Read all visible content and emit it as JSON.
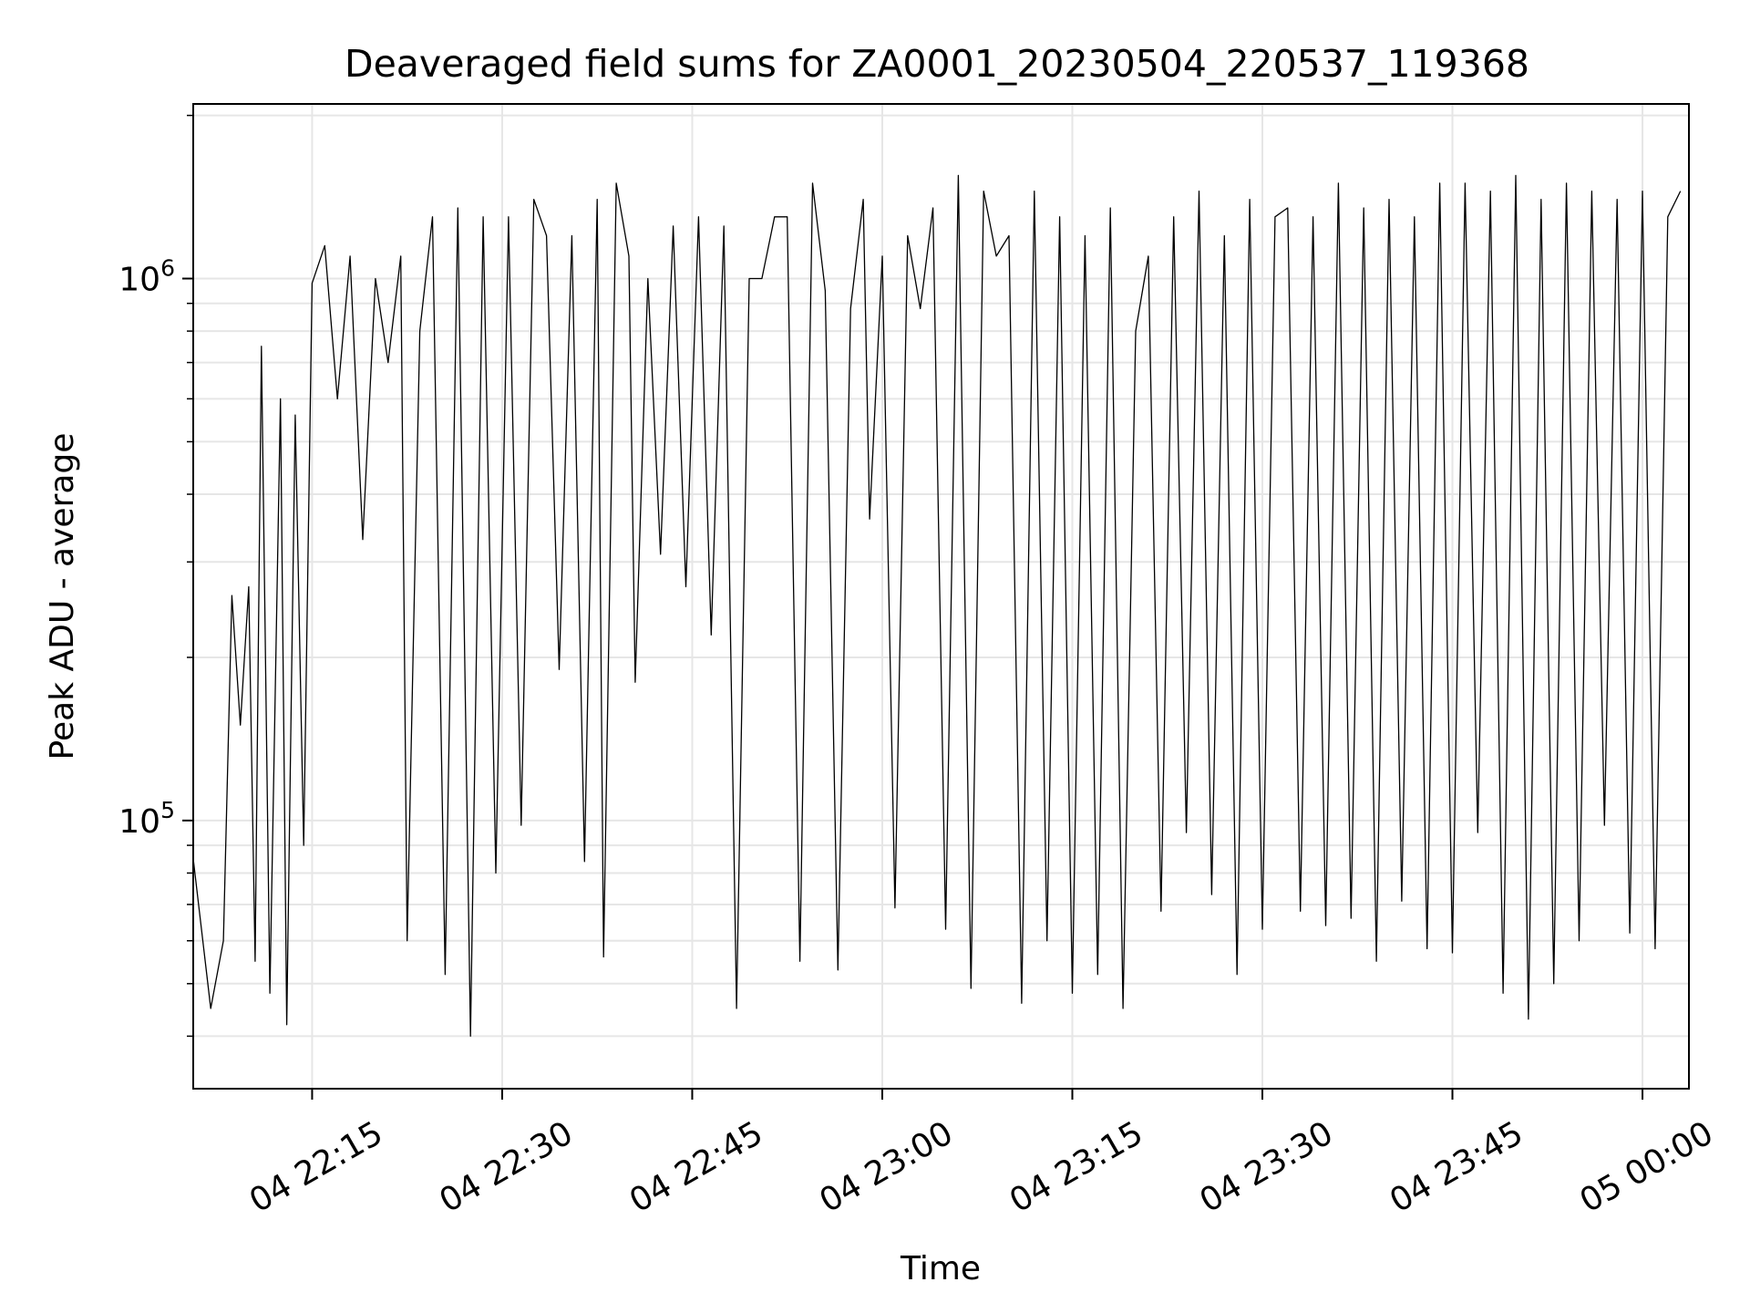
{
  "chart_data": {
    "type": "line",
    "title": "Deaveraged field sums for ZA0001_20230504_220537_119368",
    "xlabel": "Time",
    "ylabel": "Peak ADU - average",
    "x_axis": {
      "scale": "time",
      "range": [
        "2023-05-04 22:05:37",
        "2023-05-05 00:03:40"
      ],
      "ticks": [
        "04 22:15",
        "04 22:30",
        "04 22:45",
        "04 23:00",
        "04 23:15",
        "04 23:30",
        "04 23:45",
        "05 00:00"
      ]
    },
    "y_axis": {
      "scale": "log",
      "range": [
        32000,
        2100000
      ],
      "ticks": [
        {
          "base": "10",
          "exp": "5",
          "value": 100000
        },
        {
          "base": "10",
          "exp": "6",
          "value": 1000000
        }
      ]
    },
    "grid": true,
    "line_color": "#000000",
    "series": [
      {
        "x": [
          "2023-05-04 22:05:37",
          "2023-05-04 22:07:00",
          "2023-05-04 22:08:00",
          "2023-05-04 22:08:40",
          "2023-05-04 22:09:20",
          "2023-05-04 22:10:00",
          "2023-05-04 22:10:30",
          "2023-05-04 22:11:00",
          "2023-05-04 22:11:40",
          "2023-05-04 22:12:30",
          "2023-05-04 22:13:00",
          "2023-05-04 22:13:40",
          "2023-05-04 22:14:20",
          "2023-05-04 22:15:00",
          "2023-05-04 22:16:00",
          "2023-05-04 22:17:00",
          "2023-05-04 22:18:00",
          "2023-05-04 22:19:00",
          "2023-05-04 22:20:00",
          "2023-05-04 22:21:00",
          "2023-05-04 22:22:00",
          "2023-05-04 22:22:30",
          "2023-05-04 22:23:30",
          "2023-05-04 22:24:30",
          "2023-05-04 22:25:30",
          "2023-05-04 22:26:30",
          "2023-05-04 22:27:30",
          "2023-05-04 22:28:30",
          "2023-05-04 22:29:30",
          "2023-05-04 22:30:30",
          "2023-05-04 22:31:30",
          "2023-05-04 22:32:30",
          "2023-05-04 22:33:30",
          "2023-05-04 22:34:30",
          "2023-05-04 22:35:30",
          "2023-05-04 22:36:30",
          "2023-05-04 22:37:30",
          "2023-05-04 22:38:00",
          "2023-05-04 22:39:00",
          "2023-05-04 22:40:00",
          "2023-05-04 22:40:30",
          "2023-05-04 22:41:30",
          "2023-05-04 22:42:30",
          "2023-05-04 22:43:30",
          "2023-05-04 22:44:30",
          "2023-05-04 22:45:30",
          "2023-05-04 22:46:30",
          "2023-05-04 22:47:30",
          "2023-05-04 22:48:30",
          "2023-05-04 22:49:30",
          "2023-05-04 22:50:30",
          "2023-05-04 22:51:30",
          "2023-05-04 22:52:30",
          "2023-05-04 22:53:30",
          "2023-05-04 22:54:30",
          "2023-05-04 22:55:30",
          "2023-05-04 22:56:30",
          "2023-05-04 22:57:30",
          "2023-05-04 22:58:30",
          "2023-05-04 22:59:00",
          "2023-05-04 23:00:00",
          "2023-05-04 23:01:00",
          "2023-05-04 23:02:00",
          "2023-05-04 23:03:00",
          "2023-05-04 23:04:00",
          "2023-05-04 23:05:00",
          "2023-05-04 23:06:00",
          "2023-05-04 23:07:00",
          "2023-05-04 23:08:00",
          "2023-05-04 23:09:00",
          "2023-05-04 23:10:00",
          "2023-05-04 23:11:00",
          "2023-05-04 23:12:00",
          "2023-05-04 23:13:00",
          "2023-05-04 23:14:00",
          "2023-05-04 23:15:00",
          "2023-05-04 23:16:00",
          "2023-05-04 23:17:00",
          "2023-05-04 23:18:00",
          "2023-05-04 23:19:00",
          "2023-05-04 23:20:00",
          "2023-05-04 23:21:00",
          "2023-05-04 23:22:00",
          "2023-05-04 23:23:00",
          "2023-05-04 23:24:00",
          "2023-05-04 23:25:00",
          "2023-05-04 23:26:00",
          "2023-05-04 23:27:00",
          "2023-05-04 23:28:00",
          "2023-05-04 23:29:00",
          "2023-05-04 23:30:00",
          "2023-05-04 23:31:00",
          "2023-05-04 23:32:00",
          "2023-05-04 23:33:00",
          "2023-05-04 23:34:00",
          "2023-05-04 23:35:00",
          "2023-05-04 23:36:00",
          "2023-05-04 23:37:00",
          "2023-05-04 23:38:00",
          "2023-05-04 23:39:00",
          "2023-05-04 23:40:00",
          "2023-05-04 23:41:00",
          "2023-05-04 23:42:00",
          "2023-05-04 23:43:00",
          "2023-05-04 23:44:00",
          "2023-05-04 23:45:00",
          "2023-05-04 23:46:00",
          "2023-05-04 23:47:00",
          "2023-05-04 23:48:00",
          "2023-05-04 23:49:00",
          "2023-05-04 23:50:00",
          "2023-05-04 23:51:00",
          "2023-05-04 23:52:00",
          "2023-05-04 23:53:00",
          "2023-05-04 23:54:00",
          "2023-05-04 23:55:00",
          "2023-05-04 23:56:00",
          "2023-05-04 23:57:00",
          "2023-05-04 23:58:00",
          "2023-05-04 23:59:00",
          "2023-05-05 00:00:00",
          "2023-05-05 00:01:00",
          "2023-05-05 00:02:00",
          "2023-05-05 00:03:00"
        ],
        "y": [
          85000,
          45000,
          60000,
          260000,
          150000,
          270000,
          55000,
          750000,
          48000,
          600000,
          42000,
          560000,
          90000,
          980000,
          1150000,
          600000,
          1100000,
          330000,
          1000000,
          700000,
          1100000,
          60000,
          800000,
          1300000,
          52000,
          1350000,
          40000,
          1300000,
          80000,
          1300000,
          98000,
          1400000,
          1200000,
          190000,
          1200000,
          84000,
          1400000,
          56000,
          1500000,
          1100000,
          180000,
          1000000,
          310000,
          1250000,
          270000,
          1300000,
          220000,
          1250000,
          45000,
          1000000,
          1000000,
          1300000,
          1300000,
          55000,
          1500000,
          950000,
          53000,
          880000,
          1400000,
          360000,
          1100000,
          69000,
          1200000,
          880000,
          1350000,
          63000,
          1550000,
          49000,
          1450000,
          1100000,
          1200000,
          46000,
          1450000,
          60000,
          1300000,
          48000,
          1200000,
          52000,
          1350000,
          45000,
          800000,
          1100000,
          68000,
          1300000,
          95000,
          1450000,
          73000,
          1200000,
          52000,
          1400000,
          63000,
          1300000,
          1350000,
          68000,
          1300000,
          64000,
          1500000,
          66000,
          1350000,
          55000,
          1400000,
          71000,
          1300000,
          58000,
          1500000,
          57000,
          1500000,
          95000,
          1450000,
          48000,
          1550000,
          43000,
          1400000,
          50000,
          1500000,
          60000,
          1450000,
          98000,
          1400000,
          62000,
          1450000,
          58000,
          1300000,
          1450000
        ]
      }
    ]
  }
}
